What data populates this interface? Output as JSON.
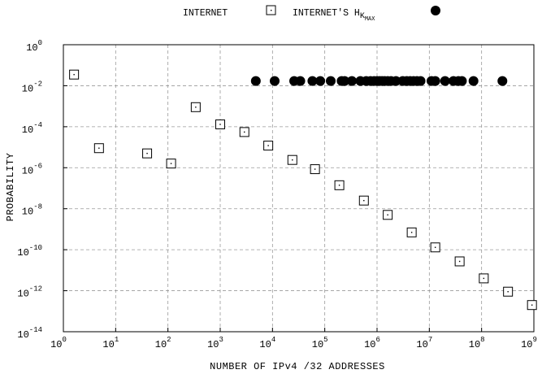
{
  "chart_data": {
    "type": "scatter",
    "xscale": "log",
    "yscale": "log",
    "xlim": [
      1,
      1000000000
    ],
    "ylim": [
      1e-14,
      1
    ],
    "grid": true,
    "legend_position": "top",
    "xlabel": "NUMBER OF IPv4 /32 ADDRESSES",
    "ylabel": "PROBABILITY",
    "x_ticks": [
      {
        "base": "10",
        "exp": "0",
        "value": 1
      },
      {
        "base": "10",
        "exp": "1",
        "value": 10
      },
      {
        "base": "10",
        "exp": "2",
        "value": 100
      },
      {
        "base": "10",
        "exp": "3",
        "value": 1000
      },
      {
        "base": "10",
        "exp": "4",
        "value": 10000
      },
      {
        "base": "10",
        "exp": "5",
        "value": 100000
      },
      {
        "base": "10",
        "exp": "6",
        "value": 1000000
      },
      {
        "base": "10",
        "exp": "7",
        "value": 10000000
      },
      {
        "base": "10",
        "exp": "8",
        "value": 100000000
      },
      {
        "base": "10",
        "exp": "9",
        "value": 1000000000
      }
    ],
    "y_ticks": [
      {
        "base": "10",
        "exp": "0",
        "value": 1
      },
      {
        "base": "10",
        "exp": "-2",
        "value": 0.01
      },
      {
        "base": "10",
        "exp": "-4",
        "value": 0.0001
      },
      {
        "base": "10",
        "exp": "-6",
        "value": 1e-06
      },
      {
        "base": "10",
        "exp": "-8",
        "value": 1e-08
      },
      {
        "base": "10",
        "exp": "-10",
        "value": 1e-10
      },
      {
        "base": "10",
        "exp": "-12",
        "value": 1e-12
      },
      {
        "base": "10",
        "exp": "-14",
        "value": 1e-14
      }
    ],
    "series": [
      {
        "name": "INTERNET",
        "marker": "square",
        "color": "#000000",
        "points": [
          {
            "x": 1.6,
            "y": 0.035
          },
          {
            "x": 4.8,
            "y": 9e-06
          },
          {
            "x": 40,
            "y": 5e-06
          },
          {
            "x": 115,
            "y": 1.6e-06
          },
          {
            "x": 340,
            "y": 0.0009
          },
          {
            "x": 1000,
            "y": 0.00013
          },
          {
            "x": 2900,
            "y": 5.5e-05
          },
          {
            "x": 8300,
            "y": 1.2e-05
          },
          {
            "x": 24000,
            "y": 2.4e-06
          },
          {
            "x": 65000,
            "y": 8.5e-07
          },
          {
            "x": 190000,
            "y": 1.4e-07
          },
          {
            "x": 560000,
            "y": 2.5e-08
          },
          {
            "x": 1600000,
            "y": 5e-09
          },
          {
            "x": 4600000,
            "y": 7e-10
          },
          {
            "x": 13000000,
            "y": 1.3e-10
          },
          {
            "x": 38000000,
            "y": 2.7e-11
          },
          {
            "x": 110000000,
            "y": 4e-12
          },
          {
            "x": 320000000,
            "y": 9e-13
          },
          {
            "x": 920000000,
            "y": 2e-13
          }
        ]
      },
      {
        "name_main": "INTERNET'S H",
        "name_sub": "K",
        "name_subsub": "MAX",
        "marker": "circle",
        "color": "#000000",
        "points": [
          {
            "x": 4800,
            "y": 0.017
          },
          {
            "x": 11000,
            "y": 0.017
          },
          {
            "x": 26000,
            "y": 0.017
          },
          {
            "x": 34000,
            "y": 0.017
          },
          {
            "x": 58000,
            "y": 0.017
          },
          {
            "x": 82000,
            "y": 0.017
          },
          {
            "x": 130000,
            "y": 0.017
          },
          {
            "x": 210000,
            "y": 0.017
          },
          {
            "x": 240000,
            "y": 0.017
          },
          {
            "x": 330000,
            "y": 0.017
          },
          {
            "x": 480000,
            "y": 0.017
          },
          {
            "x": 620000,
            "y": 0.017
          },
          {
            "x": 750000,
            "y": 0.017
          },
          {
            "x": 880000,
            "y": 0.017
          },
          {
            "x": 1000000,
            "y": 0.017
          },
          {
            "x": 1120000,
            "y": 0.017
          },
          {
            "x": 1250000,
            "y": 0.017
          },
          {
            "x": 1400000,
            "y": 0.017
          },
          {
            "x": 1600000,
            "y": 0.017
          },
          {
            "x": 1850000,
            "y": 0.017
          },
          {
            "x": 2300000,
            "y": 0.017
          },
          {
            "x": 3100000,
            "y": 0.017
          },
          {
            "x": 3700000,
            "y": 0.017
          },
          {
            "x": 4300000,
            "y": 0.017
          },
          {
            "x": 5000000,
            "y": 0.017
          },
          {
            "x": 5800000,
            "y": 0.017
          },
          {
            "x": 6800000,
            "y": 0.017
          },
          {
            "x": 11000000,
            "y": 0.017
          },
          {
            "x": 13000000,
            "y": 0.017
          },
          {
            "x": 20000000,
            "y": 0.017
          },
          {
            "x": 29000000,
            "y": 0.017
          },
          {
            "x": 36000000,
            "y": 0.017
          },
          {
            "x": 42000000,
            "y": 0.017
          },
          {
            "x": 70000000,
            "y": 0.017
          },
          {
            "x": 250000000,
            "y": 0.017
          }
        ]
      }
    ]
  }
}
